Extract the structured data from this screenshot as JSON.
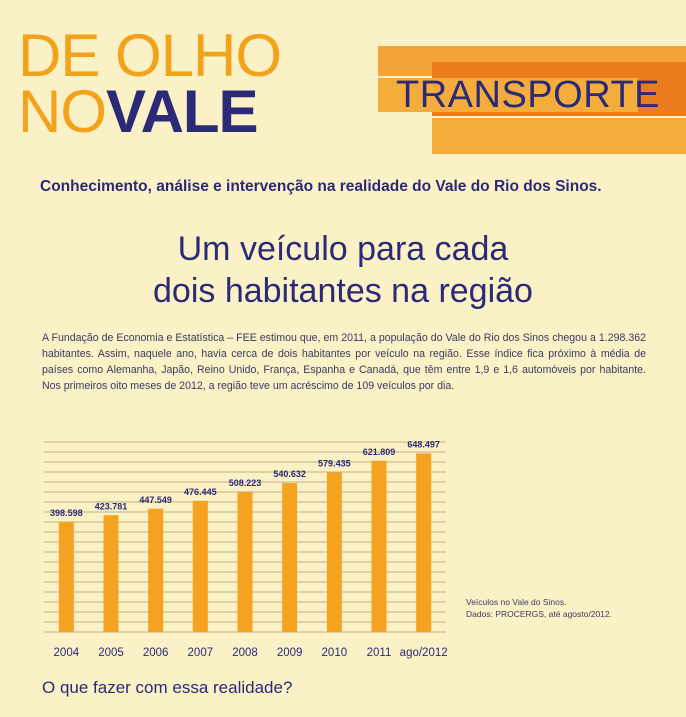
{
  "header": {
    "brand_line1": "DE OLHO",
    "brand_line2_light": "NO",
    "brand_line2_bold": "VALE",
    "section": "TRANSPORTE",
    "tagline": "Conhecimento, análise e intervenção na realidade do Vale do Rio dos Sinos."
  },
  "article": {
    "headline_line1": "Um veículo para cada",
    "headline_line2": "dois habitantes na região",
    "body": "A Fundação de Economia e Estatística – FEE estimou que, em 2011, a população do Vale do Rio dos Sinos chegou a 1.298.362 habitantes. Assim, naquele ano, havia cerca de dois habitantes por veículo na região. Esse índice fica próximo à média de países como Alemanha, Japão, Reino Unido, França, Espanha e Canadá, que têm entre 1,9 e 1,6 automóveis por habitante. Nos primeiros oito meses de 2012, a região teve um acréscimo de 109 veículos por dia.",
    "question": "O que fazer com essa realidade?"
  },
  "chart_note": {
    "line1": "Veículos no Vale do Sinos.",
    "line2": "Dados: PROCERGS, até agosto/2012."
  },
  "chart_data": {
    "type": "bar",
    "categories": [
      "2004",
      "2005",
      "2006",
      "2007",
      "2008",
      "2009",
      "2010",
      "2011",
      "ago/2012"
    ],
    "values": [
      398598,
      423781,
      447549,
      476445,
      508223,
      540632,
      579435,
      621809,
      648497
    ],
    "value_labels": [
      "398.598",
      "423.781",
      "447.549",
      "476.445",
      "508.223",
      "540.632",
      "579.435",
      "621.809",
      "648.497"
    ],
    "ylim": [
      0,
      690000
    ],
    "grid": true,
    "bar_color": "#f4a21f",
    "grid_color": "#8a6d2a"
  }
}
